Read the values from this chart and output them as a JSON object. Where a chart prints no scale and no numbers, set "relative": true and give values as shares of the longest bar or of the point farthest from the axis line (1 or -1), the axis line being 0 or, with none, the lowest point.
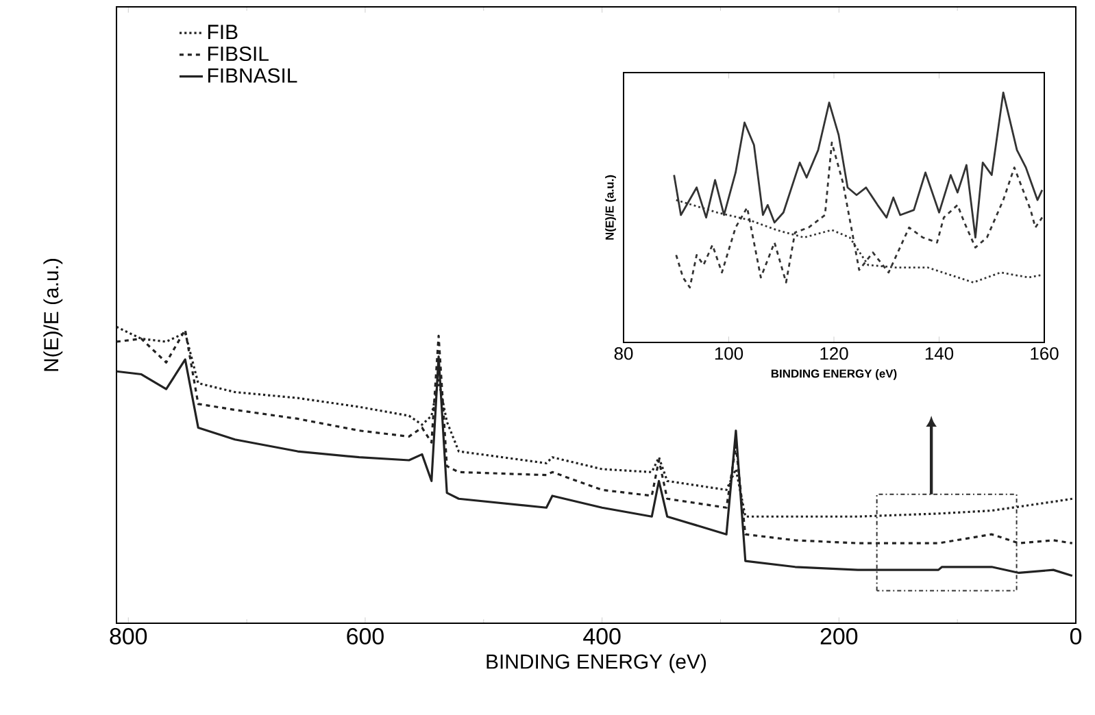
{
  "chart_data": [
    {
      "type": "line",
      "xlabel": "BINDING ENERGY (eV)",
      "ylabel": "N(E)/E (a.u.)",
      "xlim": [
        810,
        0
      ],
      "xticks": [
        800,
        600,
        400,
        200,
        0
      ],
      "relative": true,
      "tick_labels": "x",
      "legend": "top left",
      "grid": false,
      "series": [
        {
          "name": "FIB",
          "color": "#222222",
          "line_style": "dotted",
          "x": [
            810,
            789,
            768,
            752,
            741,
            710,
            657,
            605,
            563,
            552,
            544,
            538,
            531,
            521,
            447,
            442,
            400,
            358,
            352,
            345,
            295,
            287,
            279,
            237,
            184,
            116,
            71,
            19,
            3
          ],
          "values": [
            1.0,
            0.96,
            0.95,
            0.98,
            0.81,
            0.78,
            0.76,
            0.73,
            0.7,
            0.67,
            0.7,
            0.82,
            0.68,
            0.58,
            0.54,
            0.56,
            0.52,
            0.51,
            0.56,
            0.48,
            0.45,
            0.52,
            0.36,
            0.36,
            0.36,
            0.37,
            0.38,
            0.41,
            0.42
          ]
        },
        {
          "name": "FIBSIL",
          "color": "#222222",
          "line_style": "dashed",
          "x": [
            810,
            789,
            768,
            752,
            741,
            710,
            657,
            605,
            563,
            552,
            544,
            538,
            531,
            521,
            447,
            442,
            400,
            358,
            352,
            345,
            295,
            287,
            279,
            237,
            184,
            116,
            71,
            48,
            19,
            3
          ],
          "values": [
            0.95,
            0.96,
            0.88,
            0.99,
            0.74,
            0.72,
            0.69,
            0.65,
            0.63,
            0.66,
            0.61,
            0.97,
            0.53,
            0.51,
            0.5,
            0.51,
            0.45,
            0.43,
            0.55,
            0.42,
            0.39,
            0.6,
            0.3,
            0.28,
            0.27,
            0.27,
            0.3,
            0.27,
            0.28,
            0.27
          ]
        },
        {
          "name": "FIBNASIL",
          "color": "#222222",
          "line_style": "solid",
          "x": [
            810,
            789,
            768,
            752,
            741,
            710,
            657,
            605,
            563,
            552,
            544,
            538,
            531,
            521,
            447,
            442,
            400,
            358,
            352,
            345,
            295,
            287,
            279,
            237,
            184,
            116,
            113,
            71,
            48,
            19,
            3
          ],
          "values": [
            0.85,
            0.84,
            0.79,
            0.89,
            0.66,
            0.62,
            0.58,
            0.56,
            0.55,
            0.57,
            0.48,
            0.9,
            0.44,
            0.42,
            0.39,
            0.43,
            0.39,
            0.36,
            0.48,
            0.36,
            0.3,
            0.65,
            0.21,
            0.19,
            0.18,
            0.18,
            0.19,
            0.19,
            0.17,
            0.18,
            0.16
          ]
        }
      ]
    },
    {
      "type": "line",
      "xlabel": "BINDING ENERGY (eV)",
      "ylabel": "N(E)/E (a.u.)",
      "xlim": [
        80,
        160
      ],
      "xticks": [
        80,
        100,
        120,
        140,
        160
      ],
      "relative": true,
      "tick_labels": "x",
      "grid": false,
      "series": [
        {
          "color": "#333333",
          "line_style": "dotted",
          "x": [
            90.0,
            97.8,
            103.9,
            109.1,
            114.3,
            119.6,
            123.0,
            126.5,
            131.7,
            137.8,
            146.5,
            151.7,
            157.0,
            159.6
          ],
          "values": [
            0.57,
            0.52,
            0.49,
            0.45,
            0.42,
            0.45,
            0.42,
            0.31,
            0.3,
            0.3,
            0.24,
            0.28,
            0.26,
            0.27
          ]
        },
        {
          "color": "#333333",
          "line_style": "dashed",
          "x": [
            90.0,
            91.3,
            92.6,
            93.9,
            95.2,
            96.9,
            98.7,
            101.3,
            103.5,
            106.1,
            108.7,
            110.9,
            112.6,
            115.2,
            118.3,
            119.6,
            121.7,
            124.8,
            127.4,
            130.4,
            134.3,
            136.9,
            139.6,
            140.9,
            143.5,
            144.8,
            146.9,
            149.1,
            152.2,
            154.3,
            157.4,
            158.3,
            159.6
          ],
          "values": [
            0.35,
            0.26,
            0.22,
            0.35,
            0.31,
            0.39,
            0.28,
            0.46,
            0.54,
            0.26,
            0.4,
            0.24,
            0.44,
            0.46,
            0.51,
            0.8,
            0.64,
            0.29,
            0.36,
            0.28,
            0.46,
            0.42,
            0.4,
            0.5,
            0.55,
            0.48,
            0.38,
            0.42,
            0.57,
            0.7,
            0.53,
            0.46,
            0.5
          ]
        },
        {
          "color": "#333333",
          "line_style": "solid",
          "x": [
            89.6,
            90.9,
            93.9,
            95.7,
            97.4,
            99.1,
            101.3,
            103.0,
            104.8,
            106.5,
            107.4,
            108.7,
            110.4,
            113.5,
            114.8,
            117.0,
            119.1,
            120.9,
            122.6,
            124.3,
            126.1,
            128.3,
            130.0,
            131.3,
            132.6,
            135.2,
            137.4,
            140.0,
            142.2,
            143.5,
            145.2,
            146.9,
            148.3,
            150.0,
            152.2,
            154.8,
            156.5,
            158.7,
            159.6
          ],
          "values": [
            0.67,
            0.51,
            0.62,
            0.5,
            0.65,
            0.51,
            0.68,
            0.88,
            0.79,
            0.51,
            0.55,
            0.48,
            0.52,
            0.72,
            0.66,
            0.77,
            0.96,
            0.83,
            0.62,
            0.59,
            0.62,
            0.55,
            0.5,
            0.58,
            0.51,
            0.53,
            0.68,
            0.52,
            0.67,
            0.6,
            0.71,
            0.42,
            0.72,
            0.67,
            1.0,
            0.77,
            0.7,
            0.57,
            0.61
          ]
        }
      ]
    }
  ]
}
